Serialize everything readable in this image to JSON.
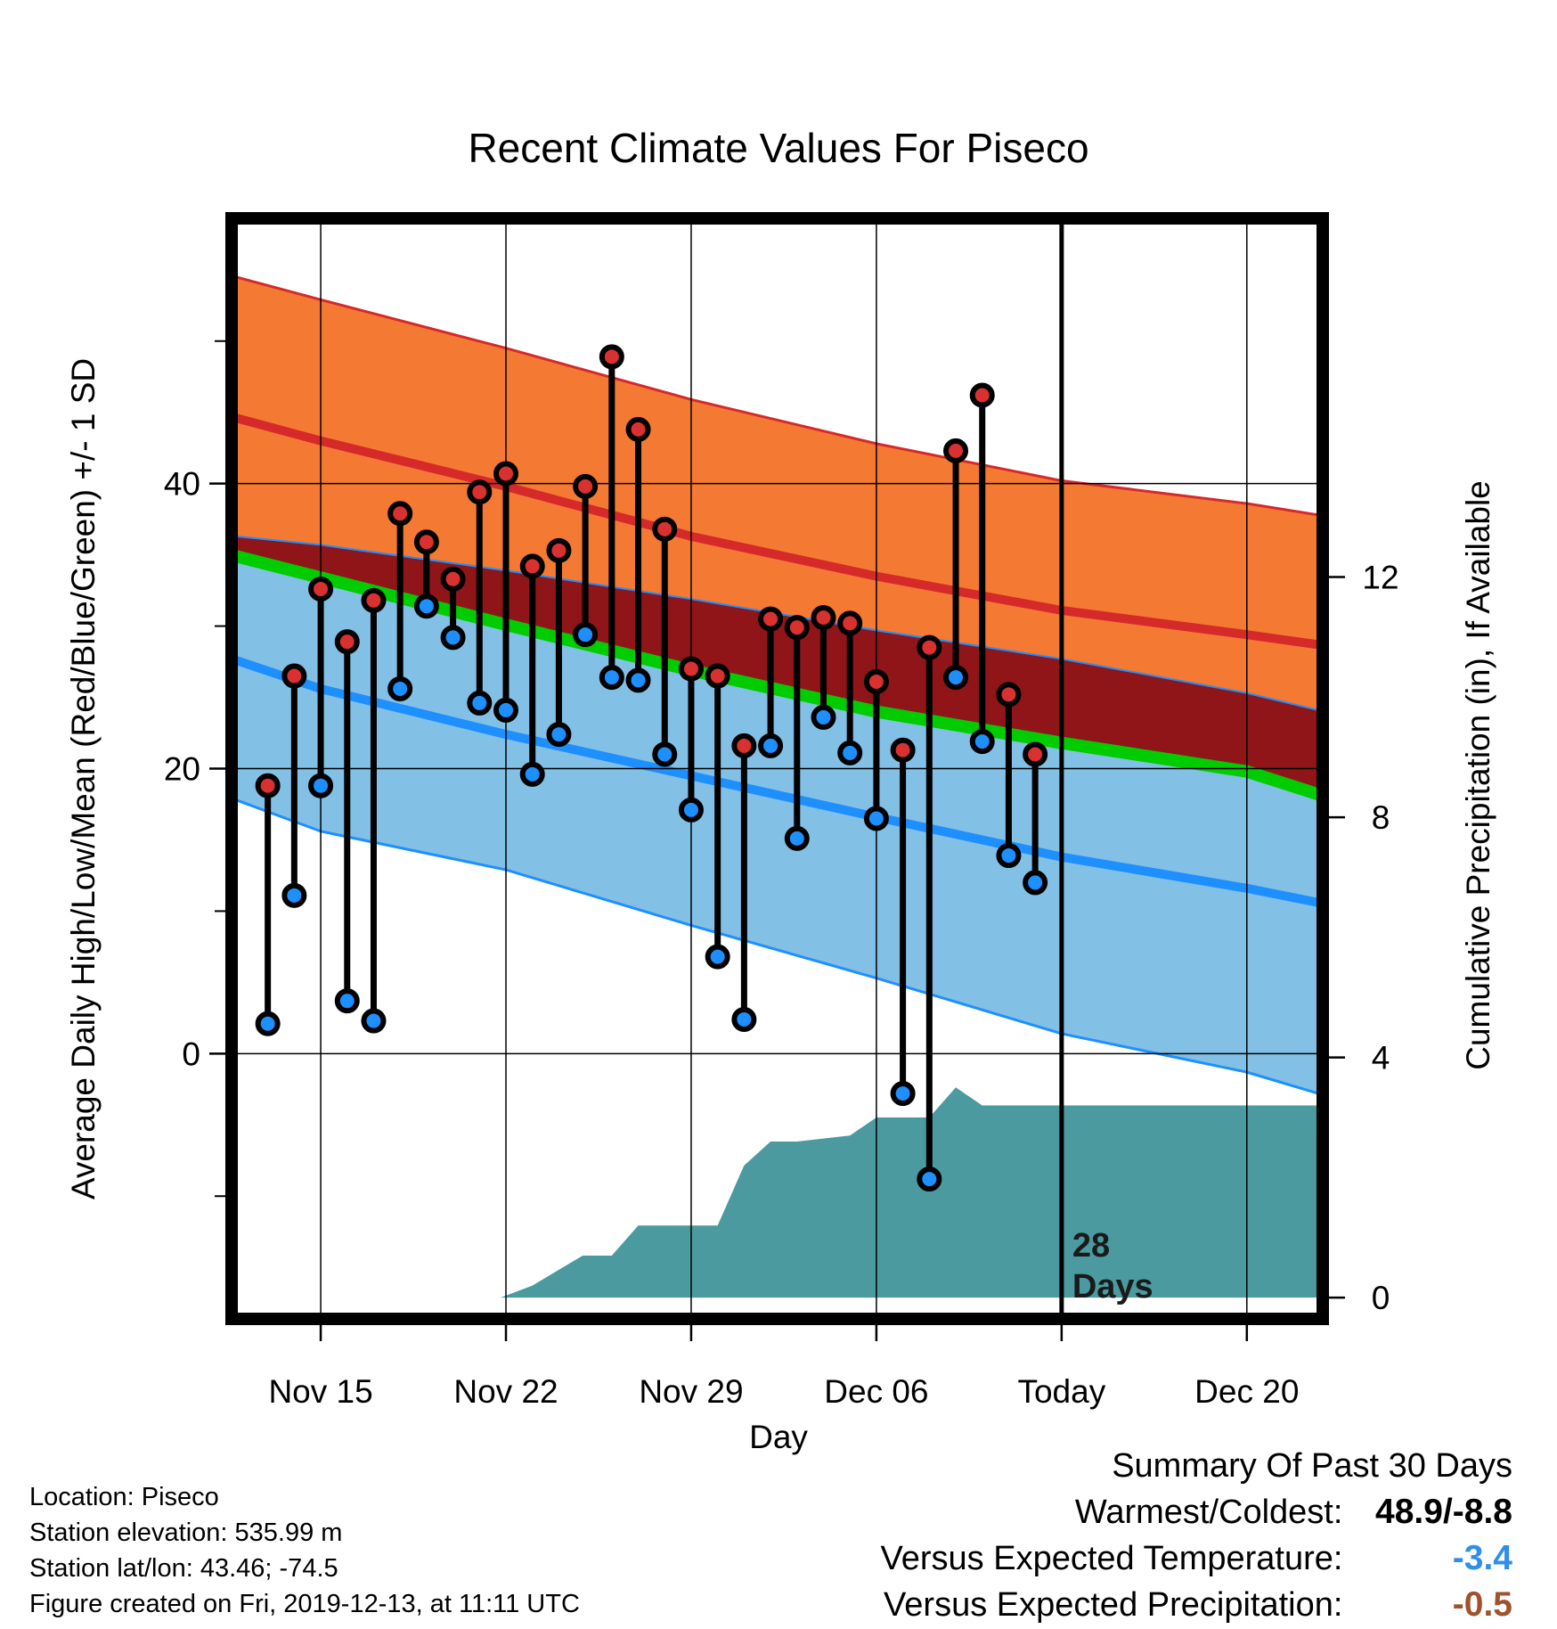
{
  "chart_data": {
    "type": "line",
    "title": "Recent Climate Values For Piseco",
    "xlabel": "Day",
    "ylabel": "Average Daily High/Low/Mean (Red/Blue/Green) +/- 1 SD",
    "y2label": "Cumulative Precipitation (in), If Available",
    "x_tick_labels": [
      "Nov 15",
      "Nov 22",
      "Nov 29",
      "Dec 06",
      "Today",
      "Dec 20"
    ],
    "x_tick_days": [
      15,
      22,
      29,
      36,
      43,
      50
    ],
    "x_range_days": [
      11.8,
      52.7
    ],
    "y_ticks": [
      0,
      20,
      40
    ],
    "y_minor_ticks": [
      -10,
      10,
      30,
      50
    ],
    "ylim": [
      -18.3,
      58.3
    ],
    "y2_ticks": [
      0,
      4,
      8,
      12
    ],
    "y2lim": [
      -0.28,
      17.9
    ],
    "grid": true,
    "today_day": 43,
    "today_annotation": "28\nDays",
    "colors": {
      "high_band": "#F47A33",
      "high_mean": "#D62A2A",
      "overlap_band": "#8F1519",
      "mean_line": "#00CC00",
      "low_band": "#82C0E6",
      "low_mean": "#1E8FFF",
      "precip": "#4A9AA0",
      "high_dot": "#D9312F",
      "low_dot": "#1E8FFF"
    },
    "normals": {
      "days": [
        11.8,
        15,
        22,
        29,
        36,
        43,
        50,
        52.7
      ],
      "high_upper": [
        54.5,
        52.9,
        49.5,
        45.9,
        42.8,
        40.2,
        38.6,
        37.8
      ],
      "high_mean": [
        44.6,
        43.0,
        39.8,
        36.3,
        33.5,
        31.1,
        29.4,
        28.7
      ],
      "mean": [
        34.9,
        33.4,
        30.1,
        26.9,
        24.0,
        21.8,
        19.8,
        18.2
      ],
      "low_upper": [
        36.3,
        35.7,
        33.9,
        31.9,
        29.7,
        27.7,
        25.3,
        24.1
      ],
      "low_mean": [
        27.6,
        25.6,
        22.4,
        19.5,
        16.6,
        13.8,
        11.6,
        10.6
      ],
      "low_lower": [
        17.8,
        15.6,
        12.9,
        9.0,
        5.3,
        1.4,
        -1.3,
        -2.8
      ]
    },
    "series": [
      {
        "name": "High",
        "days": [
          13,
          14,
          15,
          16,
          17,
          18,
          19,
          20,
          21,
          22,
          23,
          24,
          25,
          26,
          27,
          28,
          29,
          30,
          31,
          32,
          33,
          34,
          35,
          36,
          37,
          38,
          39,
          40,
          41,
          42
        ],
        "values": [
          18.8,
          26.5,
          32.6,
          28.9,
          31.8,
          37.9,
          35.9,
          33.3,
          39.4,
          40.7,
          34.2,
          35.3,
          39.8,
          48.9,
          43.8,
          36.8,
          27.0,
          26.5,
          21.6,
          30.5,
          29.9,
          30.6,
          30.2,
          26.1,
          21.3,
          28.5,
          42.3,
          46.2,
          25.2,
          21.0
        ]
      },
      {
        "name": "Low",
        "days": [
          13,
          14,
          15,
          16,
          17,
          18,
          19,
          20,
          21,
          22,
          23,
          24,
          25,
          26,
          27,
          28,
          29,
          30,
          31,
          32,
          33,
          34,
          35,
          36,
          37,
          38,
          39,
          40,
          41,
          42
        ],
        "values": [
          2.1,
          11.1,
          18.8,
          3.7,
          2.3,
          25.6,
          31.4,
          29.2,
          24.6,
          24.1,
          19.6,
          22.4,
          29.4,
          26.4,
          26.2,
          21.0,
          17.1,
          6.8,
          2.4,
          21.6,
          15.1,
          23.6,
          21.1,
          16.5,
          -2.8,
          -8.8,
          26.4,
          21.9,
          13.9,
          12.0
        ]
      },
      {
        "name": "Cumulative Precipitation",
        "days": [
          11.8,
          21.8,
          23.0,
          24.9,
          26.0,
          27.0,
          28.0,
          30.0,
          31.0,
          32.0,
          33.0,
          35.0,
          36.0,
          38.0,
          39.0,
          40.0,
          43.0,
          50.0,
          52.7
        ],
        "values": [
          0,
          0,
          0.2,
          0.7,
          0.7,
          1.2,
          1.2,
          1.2,
          2.2,
          2.6,
          2.6,
          2.7,
          3.0,
          3.0,
          3.5,
          3.2,
          3.2,
          3.2,
          3.2
        ]
      }
    ]
  },
  "info": {
    "location": "Location: Piseco",
    "elevation": "Station elevation: 535.99 m",
    "latlon": "Station lat/lon: 43.46; -74.5",
    "created": "Figure created on Fri, 2019-12-13, at 11:11 UTC"
  },
  "summary": {
    "title": "Summary Of Past 30 Days",
    "warmest_label": "Warmest/Coldest:",
    "warmest_value": "48.9/-8.8",
    "temp_label": "Versus Expected Temperature:",
    "temp_value": "-3.4",
    "temp_color": "#2F8FE8",
    "precip_label": "Versus Expected Precipitation:",
    "precip_value": "-0.5",
    "precip_color": "#A0522D"
  }
}
